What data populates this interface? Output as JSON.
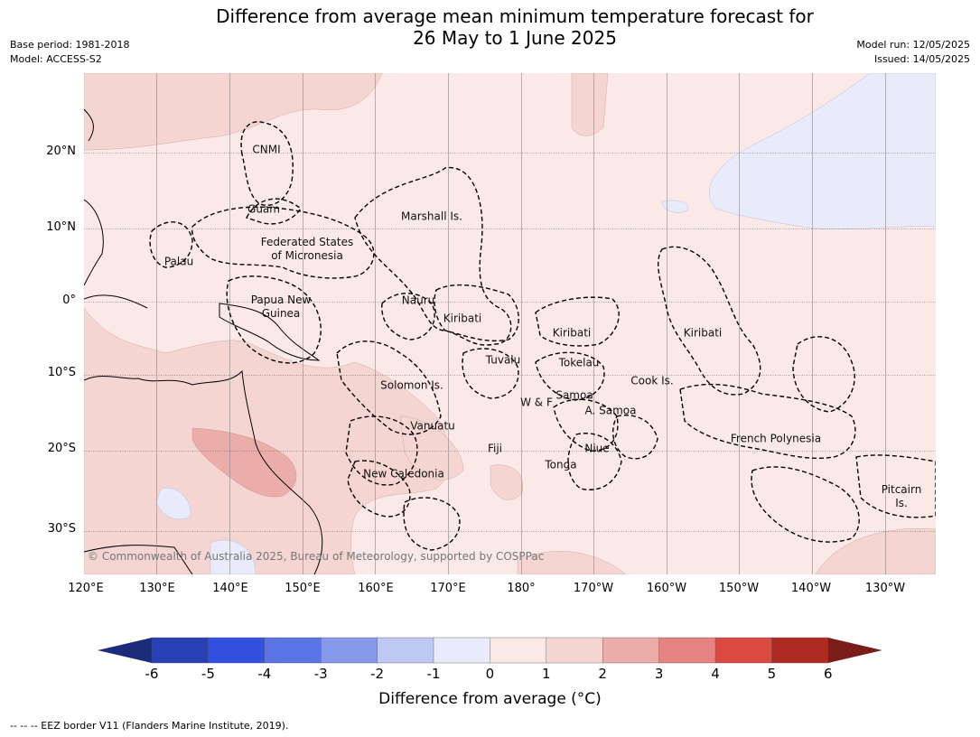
{
  "header": {
    "title_line1": "Difference from average mean minimum temperature forecast for",
    "title_line2": "26 May to 1 June 2025",
    "base_period": "Base period: 1981-2018",
    "model": "Model: ACCESS-S2",
    "model_run": "Model run: 12/05/2025",
    "issued": "Issued: 14/05/2025"
  },
  "map": {
    "latitude_labels": [
      "20°N",
      "10°N",
      "0°",
      "10°S",
      "20°S",
      "30°S"
    ],
    "longitude_labels": [
      "120°E",
      "130°E",
      "140°E",
      "150°E",
      "160°E",
      "170°E",
      "180°",
      "170°W",
      "160°W",
      "150°W",
      "140°W",
      "130°W"
    ],
    "region_labels": [
      "CNMI",
      "Guam",
      "Marshall Is.",
      "Federated States\nof Micronesia",
      "Palau",
      "Papua New\nGuinea",
      "Nauru",
      "Kiribati",
      "Kiribati",
      "Kiribati",
      "Tuvalu",
      "Tokelau",
      "Solomon Is.",
      "Cook Is.",
      "W & F",
      "Samoa",
      "A. Samoa",
      "Vanuatu",
      "Fiji",
      "Niue",
      "French Polynesia",
      "Tonga",
      "New Caledonia",
      "Pitcairn\nIs."
    ],
    "copyright": "© Commonwealth of Australia 2025, Bureau of Meteorology, supported by COSPPac",
    "colors": {
      "anomaly_0_1": "#fbe9e7",
      "anomaly_1_2": "#f5d5d2",
      "anomaly_2_3": "#ebadaa",
      "anomaly_neg_0_1": "#e9ebf9",
      "ocean_grid": "#888888"
    }
  },
  "colorbar": {
    "ticks": [
      "-6",
      "-5",
      "-4",
      "-3",
      "-2",
      "-1",
      "0",
      "1",
      "2",
      "3",
      "4",
      "5",
      "6"
    ],
    "colors": [
      "#1c2b7a",
      "#293fb5",
      "#3351e0",
      "#5a73e5",
      "#8898ea",
      "#bec8f3",
      "#e9ebfb",
      "#fbe9e7",
      "#f5d5d2",
      "#ebadaa",
      "#e4837f",
      "#da4a41",
      "#b02a24",
      "#7a1c18"
    ],
    "label": "Difference from average (°C)"
  },
  "footer": {
    "note": "-- -- -- EEZ border V11 (Flanders Marine Institute, 2019)."
  }
}
